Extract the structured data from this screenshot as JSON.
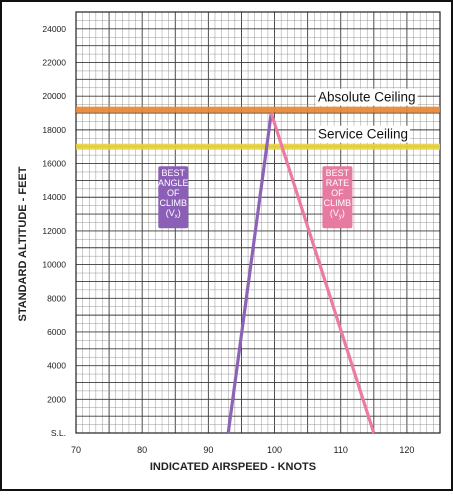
{
  "chart_data": {
    "type": "line",
    "xlabel": "INDICATED AIRSPEED  -  KNOTS",
    "ylabel": "STANDARD ALTITUDE  -  FEET",
    "xlim": [
      70,
      125
    ],
    "ylim": [
      0,
      25000
    ],
    "x_ticks": [
      {
        "value": 70,
        "label": "70"
      },
      {
        "value": 80,
        "label": "80"
      },
      {
        "value": 90,
        "label": "90"
      },
      {
        "value": 100,
        "label": "100"
      },
      {
        "value": 110,
        "label": "110"
      },
      {
        "value": 120,
        "label": "120"
      }
    ],
    "y_ticks": [
      {
        "value": 0,
        "label": "S.L."
      },
      {
        "value": 2000,
        "label": "2000"
      },
      {
        "value": 4000,
        "label": "4000"
      },
      {
        "value": 6000,
        "label": "6000"
      },
      {
        "value": 8000,
        "label": "8000"
      },
      {
        "value": 10000,
        "label": "10000"
      },
      {
        "value": 12000,
        "label": "12000"
      },
      {
        "value": 14000,
        "label": "14000"
      },
      {
        "value": 16000,
        "label": "16000"
      },
      {
        "value": 18000,
        "label": "18000"
      },
      {
        "value": 20000,
        "label": "20000"
      },
      {
        "value": 22000,
        "label": "22000"
      },
      {
        "value": 24000,
        "label": "24000"
      }
    ],
    "grid": true,
    "series": [
      {
        "key": "vx",
        "color": "#8d63b6",
        "x": [
          93,
          99.5
        ],
        "y": [
          0,
          19000
        ]
      },
      {
        "key": "vy",
        "color": "#eb7aa4",
        "x": [
          99.5,
          115
        ],
        "y": [
          19000,
          0
        ]
      }
    ],
    "reference_lines": [
      {
        "key": "absolute",
        "label": "Absolute Ceiling",
        "y": 19200,
        "color": "#e98531"
      },
      {
        "key": "service",
        "label": "Service Ceiling",
        "y": 17000,
        "color": "#e8d23f"
      }
    ],
    "annotations": [
      {
        "key": "vx",
        "lines": [
          "BEST",
          "ANGLE",
          "OF",
          "CLIMB",
          "(V",
          ")"
        ],
        "subscript": "x",
        "color": "#8b5fb6",
        "x": 84.7,
        "y": 14000
      },
      {
        "key": "vy",
        "lines": [
          "BEST",
          "RATE",
          "OF",
          "CLIMB",
          "(V",
          ")"
        ],
        "subscript": "y",
        "color": "#e67aa0",
        "x": 109.5,
        "y": 14000
      }
    ]
  }
}
